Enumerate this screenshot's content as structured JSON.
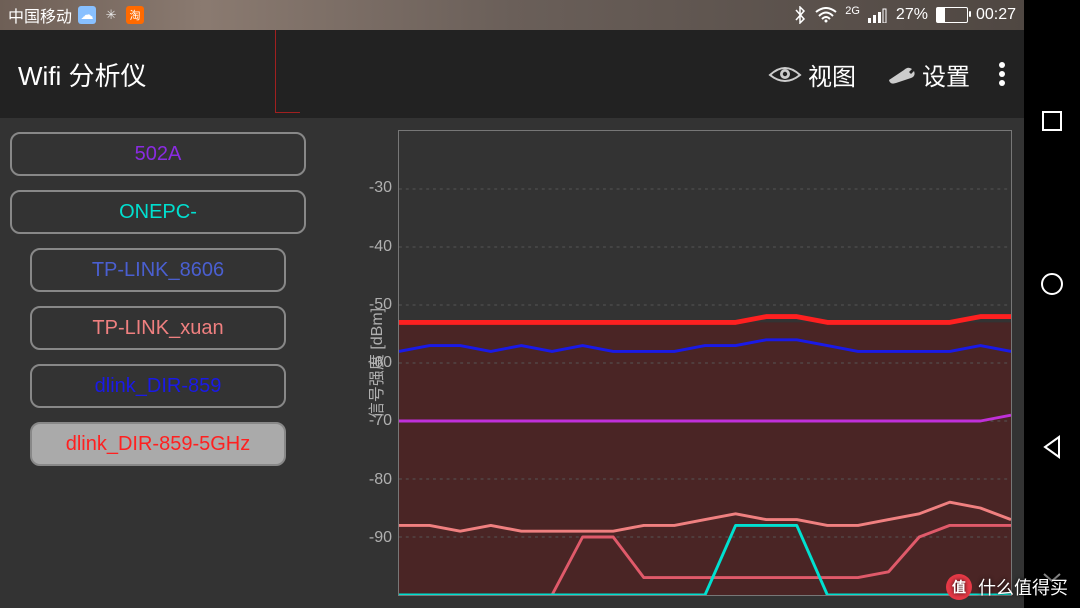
{
  "status": {
    "carrier": "中国移动",
    "network_label": "2G",
    "battery_text": "27%",
    "battery_level": 27,
    "time": "00:27"
  },
  "app": {
    "title": "Wifi 分析仪",
    "view_label": "视图",
    "settings_label": "设置"
  },
  "networks": [
    {
      "ssid": "502A",
      "color": "#8a2be2",
      "selected": false,
      "wide": true
    },
    {
      "ssid": "ONEPC-",
      "color": "#00e0d0",
      "selected": false,
      "wide": true
    },
    {
      "ssid": "TP-LINK_8606",
      "color": "#4a5fd0",
      "selected": false,
      "wide": false
    },
    {
      "ssid": "TP-LINK_xuan",
      "color": "#f08080",
      "selected": false,
      "wide": false
    },
    {
      "ssid": "dlink_DIR-859",
      "color": "#1a1ae6",
      "selected": false,
      "wide": false
    },
    {
      "ssid": "dlink_DIR-859-5GHz",
      "color": "#ff2020",
      "selected": true,
      "wide": false
    }
  ],
  "chart": {
    "ylabel": "信号强度 [dBm]",
    "ylim": [
      -100,
      -20
    ],
    "yticks": [
      -30,
      -40,
      -50,
      -60,
      -70,
      -80,
      -90
    ],
    "grid_color": "#555555",
    "border_color": "#777777",
    "tick_color": "#b0b0b0",
    "background_color": "#333333",
    "shade": {
      "color": "#5c1a1a",
      "opacity": 0.55,
      "top_dbm": -53
    },
    "series": [
      {
        "name": "dlink_DIR-859-5GHz",
        "color": "#ff2020",
        "width": 5,
        "data": [
          -53,
          -53,
          -53,
          -53,
          -53,
          -53,
          -53,
          -53,
          -53,
          -53,
          -53,
          -53,
          -52,
          -52,
          -53,
          -53,
          -53,
          -53,
          -53,
          -52,
          -52
        ]
      },
      {
        "name": "dlink_DIR-859",
        "color": "#1a1ae6",
        "width": 3,
        "data": [
          -58,
          -57,
          -57,
          -58,
          -57,
          -58,
          -57,
          -58,
          -58,
          -58,
          -57,
          -57,
          -56,
          -56,
          -57,
          -58,
          -58,
          -58,
          -58,
          -57,
          -58
        ]
      },
      {
        "name": "502A",
        "color": "#c030d8",
        "width": 3,
        "data": [
          -70,
          -70,
          -70,
          -70,
          -70,
          -70,
          -70,
          -70,
          -70,
          -70,
          -70,
          -70,
          -70,
          -70,
          -70,
          -70,
          -70,
          -70,
          -70,
          -70,
          -69
        ]
      },
      {
        "name": "TP-LINK_xuan",
        "color": "#f08080",
        "width": 3,
        "data": [
          -88,
          -88,
          -89,
          -88,
          -89,
          -89,
          -89,
          -89,
          -88,
          -88,
          -87,
          -86,
          -87,
          -87,
          -88,
          -88,
          -87,
          -86,
          -84,
          -85,
          -87
        ]
      },
      {
        "name": "TP-LINK_8606",
        "color": "#e05a6a",
        "width": 3,
        "data": [
          -100,
          -100,
          -100,
          -100,
          -100,
          -100,
          -90,
          -90,
          -97,
          -97,
          -97,
          -97,
          -97,
          -97,
          -97,
          -97,
          -96,
          -90,
          -88,
          -88,
          -88
        ]
      },
      {
        "name": "ONEPC-",
        "color": "#00e0d0",
        "width": 3,
        "data": [
          -100,
          -100,
          -100,
          -100,
          -100,
          -100,
          -100,
          -100,
          -100,
          -100,
          -100,
          -88,
          -88,
          -88,
          -100,
          -100,
          -100,
          -100,
          -100,
          -100,
          -100
        ]
      }
    ]
  },
  "watermark": {
    "badge": "值",
    "text": "什么值得买"
  }
}
